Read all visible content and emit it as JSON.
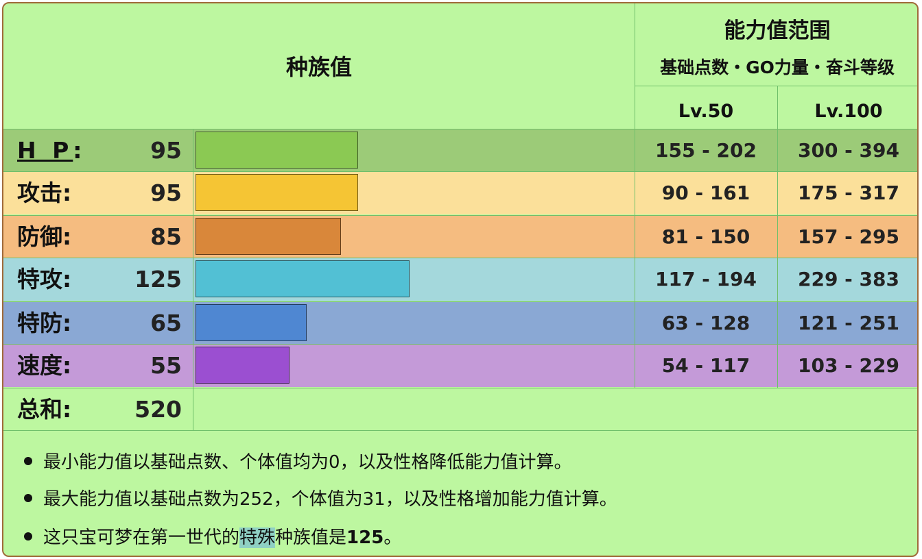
{
  "header": {
    "base_stats_title": "种族值",
    "range_title": "能力值范围",
    "range_subtitle": "基础点数・GO力量・奋斗等级",
    "lv50": "Lv.50",
    "lv100": "Lv.100"
  },
  "stats": [
    {
      "label": "H P",
      "colon": ":",
      "value": "95",
      "value_num": 95,
      "range50": "155 - 202",
      "range100": "300 - 394",
      "row_color": "#9ccb78",
      "bar_color": "#8bc953"
    },
    {
      "label": "攻击",
      "colon": ":",
      "value": "95",
      "value_num": 95,
      "range50": "90 - 161",
      "range100": "175 - 317",
      "row_color": "#fbe09a",
      "bar_color": "#f5c534"
    },
    {
      "label": "防御",
      "colon": ":",
      "value": "85",
      "value_num": 85,
      "range50": "81 - 150",
      "range100": "157 - 295",
      "row_color": "#f5bc80",
      "bar_color": "#d9873a"
    },
    {
      "label": "特攻",
      "colon": ":",
      "value": "125",
      "value_num": 125,
      "range50": "117 - 194",
      "range100": "229 - 383",
      "row_color": "#a4d8dc",
      "bar_color": "#52c0d4"
    },
    {
      "label": "特防",
      "colon": ":",
      "value": "65",
      "value_num": 65,
      "range50": "63 - 128",
      "range100": "121 - 251",
      "row_color": "#8aa8d4",
      "bar_color": "#4f87d2"
    },
    {
      "label": "速度",
      "colon": ":",
      "value": "55",
      "value_num": 55,
      "range50": "54 - 117",
      "range100": "103 - 229",
      "row_color": "#c49ad8",
      "bar_color": "#9b4fd1"
    }
  ],
  "total": {
    "label": "总和",
    "colon": ":",
    "value": "520"
  },
  "notes": {
    "line1": "最小能力值以基础点数、个体值均为0，以及性格降低能力值计算。",
    "line2": "最大能力值以基础点数为252，个体值为31，以及性格增加能力值计算。",
    "line3_prefix": "这只宝可梦在第一世代的",
    "line3_highlight": "特殊",
    "line3_middle": "种族值是",
    "line3_value": "125",
    "line3_suffix": "。"
  },
  "colors": {
    "background": "#bdf7a0",
    "border": "#a06a3a",
    "highlight": "#8fd0c4"
  }
}
